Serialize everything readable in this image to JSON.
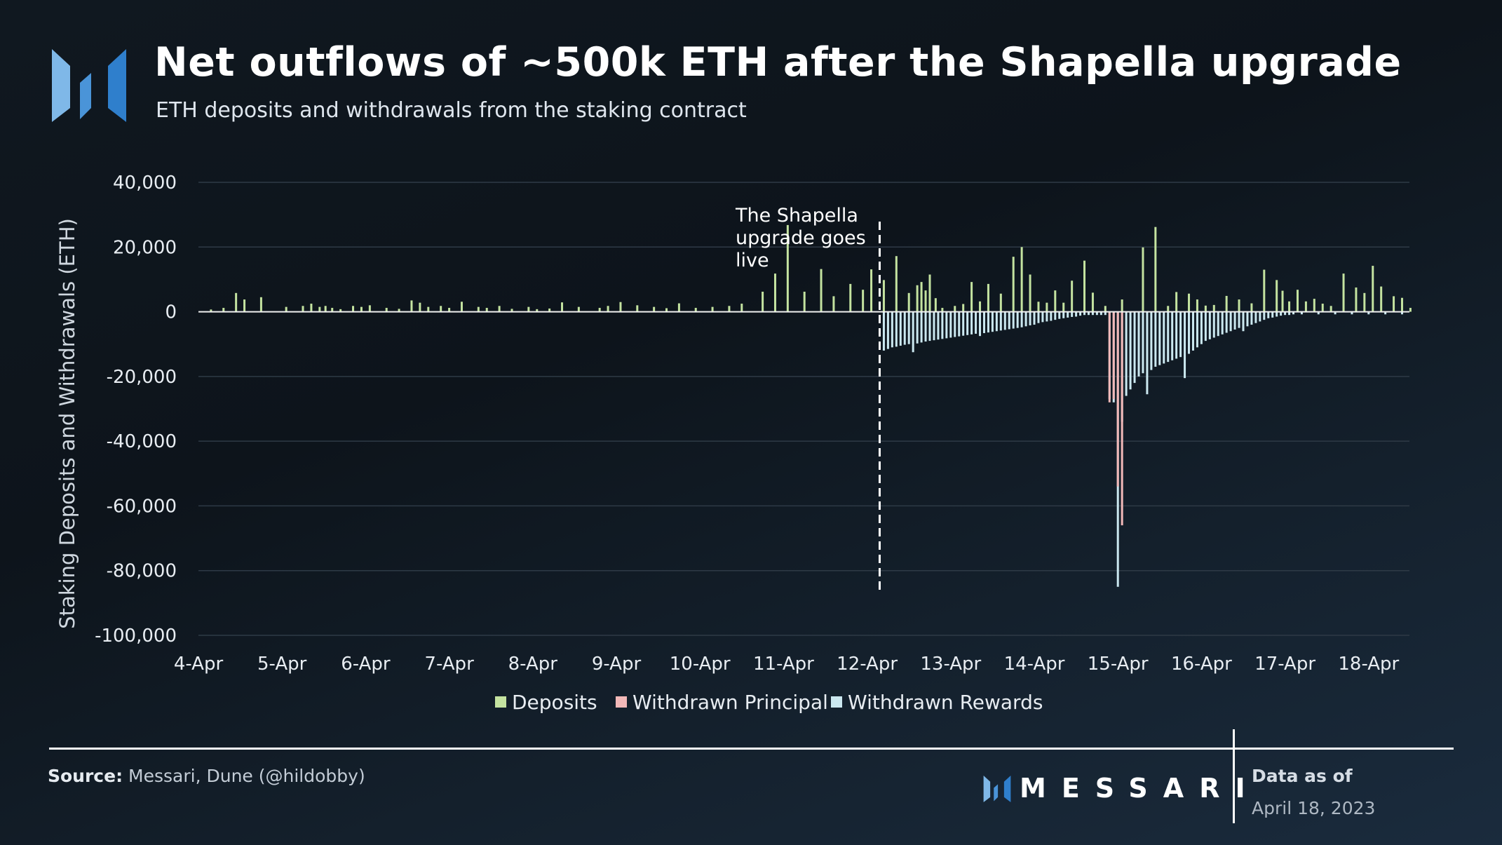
{
  "header": {
    "title": "Net outflows of ~500k ETH after the Shapella upgrade",
    "subtitle": "ETH deposits and withdrawals from the staking contract"
  },
  "footer": {
    "source_label": "Source:",
    "source_text": "Messari, Dune (@hildobby)",
    "brand": "MESSARI",
    "data_as_of_label": "Data as of",
    "data_as_of_date": "April 18, 2023"
  },
  "colors": {
    "deposits": "#c4e3a0",
    "principal": "#f2b8b8",
    "rewards": "#cbe8f0",
    "logo_light": "#7fb8e8",
    "logo_dark": "#2f7fcc"
  },
  "chart_data": {
    "type": "bar",
    "ylabel": "Staking Deposits and Withdrawals (ETH)",
    "ylim": [
      -100000,
      40000
    ],
    "yticks": [
      40000,
      20000,
      0,
      -20000,
      -40000,
      -60000,
      -80000,
      -100000
    ],
    "ytick_labels": [
      "40,000",
      "20,000",
      "0",
      "-20,000",
      "-40,000",
      "-60,000",
      "-80,000",
      "-100,000"
    ],
    "x_start_label": "4-Apr",
    "xlim_days": [
      0,
      14.6
    ],
    "xtick_labels": [
      "4-Apr",
      "5-Apr",
      "6-Apr",
      "7-Apr",
      "8-Apr",
      "9-Apr",
      "10-Apr",
      "11-Apr",
      "12-Apr",
      "13-Apr",
      "14-Apr",
      "15-Apr",
      "16-Apr",
      "17-Apr",
      "18-Apr"
    ],
    "grid": true,
    "legend_position": "bottom",
    "annotation": {
      "text_lines": [
        "The Shapella",
        "upgrade goes",
        "live"
      ],
      "x": 8.15
    },
    "series": [
      {
        "name": "Deposits",
        "x": [
          0.15,
          0.3,
          0.45,
          0.55,
          0.75,
          1.05,
          1.25,
          1.35,
          1.45,
          1.52,
          1.6,
          1.7,
          1.85,
          1.95,
          2.05,
          2.25,
          2.4,
          2.55,
          2.65,
          2.75,
          2.9,
          3.0,
          3.15,
          3.35,
          3.45,
          3.6,
          3.75,
          3.95,
          4.05,
          4.2,
          4.35,
          4.55,
          4.8,
          4.9,
          5.05,
          5.25,
          5.45,
          5.6,
          5.75,
          5.95,
          6.15,
          6.35,
          6.5,
          6.75,
          6.9,
          7.05,
          7.25,
          7.45,
          7.6,
          7.8,
          7.95,
          8.05,
          8.2,
          8.35,
          8.5,
          8.6,
          8.65,
          8.7,
          8.75,
          8.82,
          8.9,
          9.05,
          9.15,
          9.25,
          9.35,
          9.45,
          9.6,
          9.75,
          9.85,
          9.95,
          10.05,
          10.15,
          10.25,
          10.35,
          10.45,
          10.6,
          10.7,
          10.85,
          11.05,
          11.3,
          11.45,
          11.6,
          11.7,
          11.85,
          11.95,
          12.05,
          12.15,
          12.3,
          12.45,
          12.6,
          12.75,
          12.9,
          12.97,
          13.05,
          13.15,
          13.25,
          13.35,
          13.45,
          13.55,
          13.7,
          13.85,
          13.95,
          14.05,
          14.15,
          14.3,
          14.4,
          14.5
        ],
        "values": [
          700,
          1200,
          5800,
          3800,
          4500,
          1500,
          1800,
          2500,
          1500,
          1800,
          1200,
          800,
          1800,
          1500,
          2000,
          1200,
          900,
          3500,
          2800,
          1500,
          1800,
          1200,
          3100,
          1500,
          1200,
          1800,
          900,
          1500,
          800,
          1000,
          2900,
          1500,
          1200,
          1800,
          3000,
          2000,
          1500,
          1100,
          2600,
          1200,
          1500,
          1800,
          2500,
          6200,
          11800,
          26800,
          6200,
          13200,
          4800,
          8600,
          6800,
          13100,
          9800,
          17200,
          5800,
          8200,
          9200,
          6600,
          11500,
          4200,
          1200,
          1800,
          2400,
          9200,
          3200,
          8600,
          5600,
          17000,
          20000,
          11500,
          3100,
          2800,
          6600,
          2800,
          9600,
          15800,
          5900,
          1800,
          3800,
          19900,
          26200,
          1800,
          6100,
          5600,
          3800,
          1900,
          2100,
          4900,
          3800,
          2600,
          13000,
          9800,
          6500,
          3200,
          6800,
          3200,
          4000,
          2500,
          1800,
          11800,
          7500,
          5800,
          14200,
          7800,
          4800,
          4300,
          1200
        ]
      },
      {
        "name": "Withdrawn Principal",
        "x": [
          10.9,
          10.95,
          11.0,
          11.05
        ],
        "values": [
          -28000,
          -27000,
          -54000,
          -66000
        ]
      },
      {
        "name": "Withdrawn Rewards",
        "x": [
          8.2,
          8.25,
          8.3,
          8.35,
          8.4,
          8.45,
          8.5,
          8.55,
          8.6,
          8.65,
          8.7,
          8.75,
          8.8,
          8.85,
          8.9,
          8.95,
          9.0,
          9.05,
          9.1,
          9.15,
          9.2,
          9.25,
          9.3,
          9.35,
          9.4,
          9.45,
          9.5,
          9.55,
          9.6,
          9.65,
          9.7,
          9.75,
          9.8,
          9.85,
          9.9,
          9.95,
          10.0,
          10.05,
          10.1,
          10.15,
          10.2,
          10.25,
          10.3,
          10.35,
          10.4,
          10.45,
          10.5,
          10.55,
          10.6,
          10.65,
          10.7,
          10.75,
          10.8,
          10.85,
          10.9,
          10.95,
          11.0,
          11.05,
          11.1,
          11.15,
          11.2,
          11.25,
          11.3,
          11.35,
          11.4,
          11.45,
          11.5,
          11.55,
          11.6,
          11.65,
          11.7,
          11.75,
          11.8,
          11.85,
          11.9,
          11.95,
          12.0,
          12.05,
          12.1,
          12.15,
          12.2,
          12.25,
          12.3,
          12.35,
          12.4,
          12.45,
          12.5,
          12.55,
          12.6,
          12.65,
          12.7,
          12.75,
          12.8,
          12.85,
          12.9,
          12.95,
          13.0,
          13.05,
          13.1,
          13.2,
          13.4,
          13.6,
          13.8,
          14.0,
          14.2,
          14.4
        ],
        "values": [
          -12000,
          -11500,
          -11000,
          -10800,
          -10500,
          -10200,
          -10000,
          -12500,
          -9800,
          -9500,
          -9200,
          -9000,
          -8800,
          -8600,
          -8400,
          -8200,
          -8000,
          -7800,
          -7600,
          -7400,
          -7200,
          -7000,
          -6800,
          -7500,
          -6600,
          -6400,
          -6200,
          -6000,
          -5800,
          -5600,
          -5400,
          -5200,
          -5000,
          -4800,
          -4500,
          -4200,
          -4000,
          -3500,
          -3200,
          -3000,
          -2800,
          -2500,
          -2200,
          -2000,
          -1800,
          -1600,
          -1500,
          -1200,
          -1000,
          -1000,
          -1000,
          -1000,
          -1000,
          -1000,
          -27000,
          -28000,
          -85000,
          -34000,
          -26000,
          -24000,
          -22000,
          -20000,
          -19000,
          -25500,
          -18000,
          -17000,
          -16500,
          -16000,
          -15500,
          -15000,
          -14500,
          -14000,
          -20500,
          -13000,
          -12000,
          -11000,
          -10000,
          -9000,
          -8500,
          -8000,
          -7500,
          -7000,
          -6500,
          -6000,
          -5500,
          -5000,
          -6000,
          -4500,
          -4000,
          -3500,
          -3000,
          -2500,
          -2000,
          -1800,
          -1500,
          -1200,
          -1000,
          -1000,
          -800,
          -800,
          -800,
          -800,
          -800,
          -800,
          -800,
          -800
        ]
      }
    ]
  }
}
